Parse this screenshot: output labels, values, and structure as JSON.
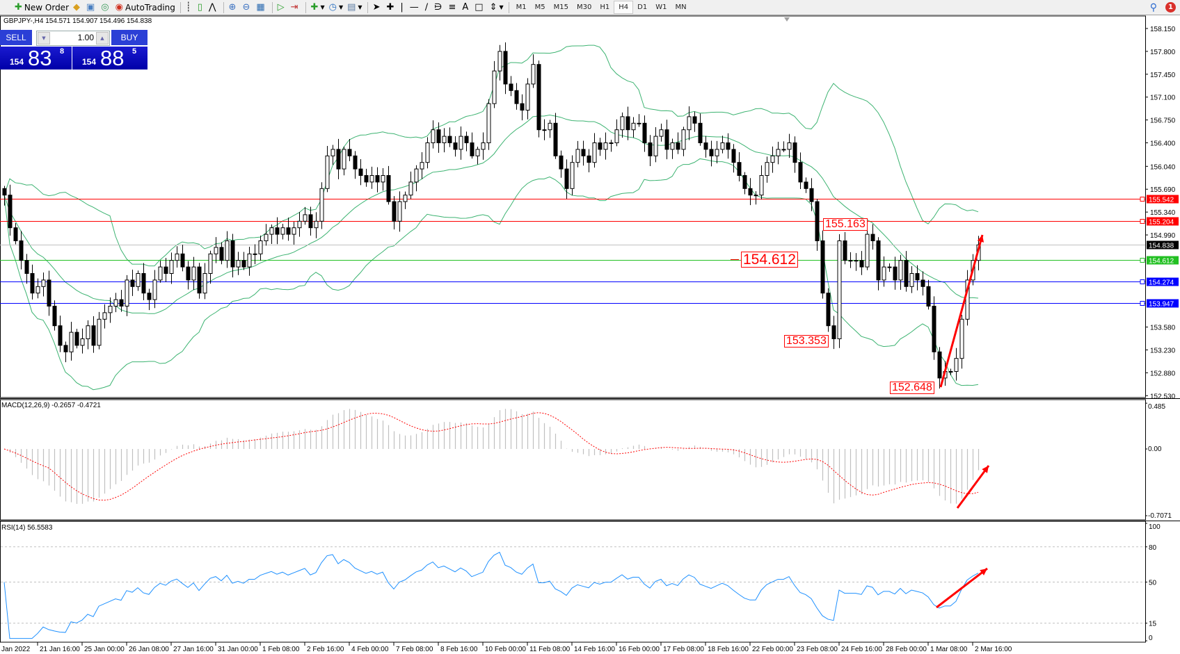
{
  "toolbar": {
    "new_order": "New Order",
    "autotrading": "AutoTrading",
    "timeframes": [
      "M1",
      "M5",
      "M15",
      "M30",
      "H1",
      "H4",
      "D1",
      "W1",
      "MN"
    ],
    "selected_timeframe": "H4",
    "notification_count": "1"
  },
  "chart_header": "GBPJPY-,H4  154.571 154.907 154.496 154.838",
  "one_click": {
    "sell_label": "SELL",
    "buy_label": "BUY",
    "lot": "1.00",
    "sell_price": {
      "prefix": "154",
      "big": "83",
      "sup": "8"
    },
    "buy_price": {
      "prefix": "154",
      "big": "88",
      "sup": "5"
    }
  },
  "price_axis": [
    "158.150",
    "157.800",
    "157.450",
    "157.100",
    "156.750",
    "156.400",
    "156.040",
    "155.690",
    "155.340",
    "154.990",
    "153.580",
    "153.230",
    "152.880",
    "152.530"
  ],
  "hlines": [
    {
      "value": "155.542",
      "color": "#ff0000"
    },
    {
      "value": "155.204",
      "color": "#ff0000"
    },
    {
      "value": "154.838",
      "color": "#c0c0c0",
      "label_bg": "#000000"
    },
    {
      "value": "154.612",
      "color": "#22c022"
    },
    {
      "value": "154.274",
      "color": "#0000ff"
    },
    {
      "value": "153.947",
      "color": "#0000ff"
    }
  ],
  "annotations": [
    "155.163",
    "154.612",
    "153.353",
    "152.648"
  ],
  "macd": {
    "label": "MACD(12,26,9) -0.2657 -0.4721",
    "axis": [
      "0.485",
      "0.00",
      "-0.7071"
    ]
  },
  "rsi": {
    "label": "RSI(14) 56.5583",
    "axis": [
      "100",
      "80",
      "50",
      "15",
      "0"
    ],
    "levels": [
      80,
      50,
      15
    ]
  },
  "time_axis": [
    "Jan 2022",
    "21 Jan 16:00",
    "25 Jan 00:00",
    "26 Jan 08:00",
    "27 Jan 16:00",
    "31 Jan 00:00",
    "1 Feb 08:00",
    "2 Feb 16:00",
    "4 Feb 00:00",
    "7 Feb 08:00",
    "8 Feb 16:00",
    "10 Feb 00:00",
    "11 Feb 08:00",
    "14 Feb 16:00",
    "16 Feb 00:00",
    "17 Feb 08:00",
    "18 Feb 16:00",
    "22 Feb 00:00",
    "23 Feb 08:00",
    "24 Feb 16:00",
    "28 Feb 00:00",
    "1 Mar 08:00",
    "2 Mar 16:00"
  ],
  "colors": {
    "bollinger": "#3cb371",
    "rsi": "#1e90ff",
    "macd_hist": "#c0c0c0",
    "macd_signal": "#ff0000",
    "arrow": "#ff0000"
  },
  "chart_data": {
    "type": "candlestick",
    "symbol": "GBPJPY",
    "timeframe": "H4",
    "ylim": [
      152.05,
      158.37
    ],
    "closes": [
      155.6,
      155.1,
      154.9,
      154.6,
      154.4,
      154.1,
      154.2,
      154.3,
      153.9,
      153.6,
      153.3,
      153.2,
      153.5,
      153.3,
      153.4,
      153.6,
      153.3,
      153.7,
      153.8,
      153.9,
      154.0,
      153.9,
      154.3,
      154.2,
      154.4,
      154.1,
      154.0,
      154.3,
      154.5,
      154.4,
      154.6,
      154.7,
      154.5,
      154.3,
      154.5,
      154.1,
      154.4,
      154.7,
      154.8,
      154.6,
      154.9,
      154.5,
      154.6,
      154.5,
      154.7,
      154.7,
      154.9,
      155.0,
      155.1,
      155.0,
      155.1,
      155.0,
      155.1,
      155.2,
      155.3,
      155.1,
      155.2,
      155.7,
      156.2,
      156.3,
      156.0,
      156.3,
      156.2,
      156.0,
      155.9,
      155.8,
      155.9,
      155.8,
      155.9,
      155.5,
      155.2,
      155.5,
      155.6,
      155.8,
      156.0,
      156.1,
      156.4,
      156.6,
      156.4,
      156.5,
      156.4,
      156.3,
      156.5,
      156.4,
      156.2,
      156.3,
      156.4,
      157.0,
      157.5,
      157.8,
      157.3,
      157.2,
      157.0,
      156.9,
      157.3,
      157.6,
      156.6,
      156.6,
      156.7,
      156.2,
      156.0,
      155.7,
      156.1,
      156.3,
      156.2,
      156.1,
      156.4,
      156.3,
      156.4,
      156.4,
      156.6,
      156.8,
      156.6,
      156.7,
      156.7,
      156.4,
      156.2,
      156.5,
      156.6,
      156.3,
      156.4,
      156.3,
      156.6,
      156.8,
      156.7,
      156.4,
      156.3,
      156.2,
      156.3,
      156.4,
      156.3,
      156.1,
      155.9,
      155.7,
      155.6,
      155.6,
      155.9,
      156.1,
      156.2,
      156.3,
      156.3,
      156.4,
      156.1,
      155.8,
      155.7,
      155.5,
      154.9,
      154.1,
      153.6,
      153.4,
      154.9,
      154.6,
      154.6,
      154.6,
      154.5,
      155.0,
      154.9,
      154.3,
      154.5,
      154.5,
      154.3,
      154.6,
      154.2,
      154.4,
      154.3,
      154.2,
      153.9,
      153.2,
      152.8,
      152.9,
      152.9,
      153.1,
      153.7,
      154.3,
      154.6,
      154.838
    ],
    "indicators": [
      "Bollinger Bands(20,2)",
      "MACD(12,26,9)",
      "RSI(14)"
    ]
  }
}
